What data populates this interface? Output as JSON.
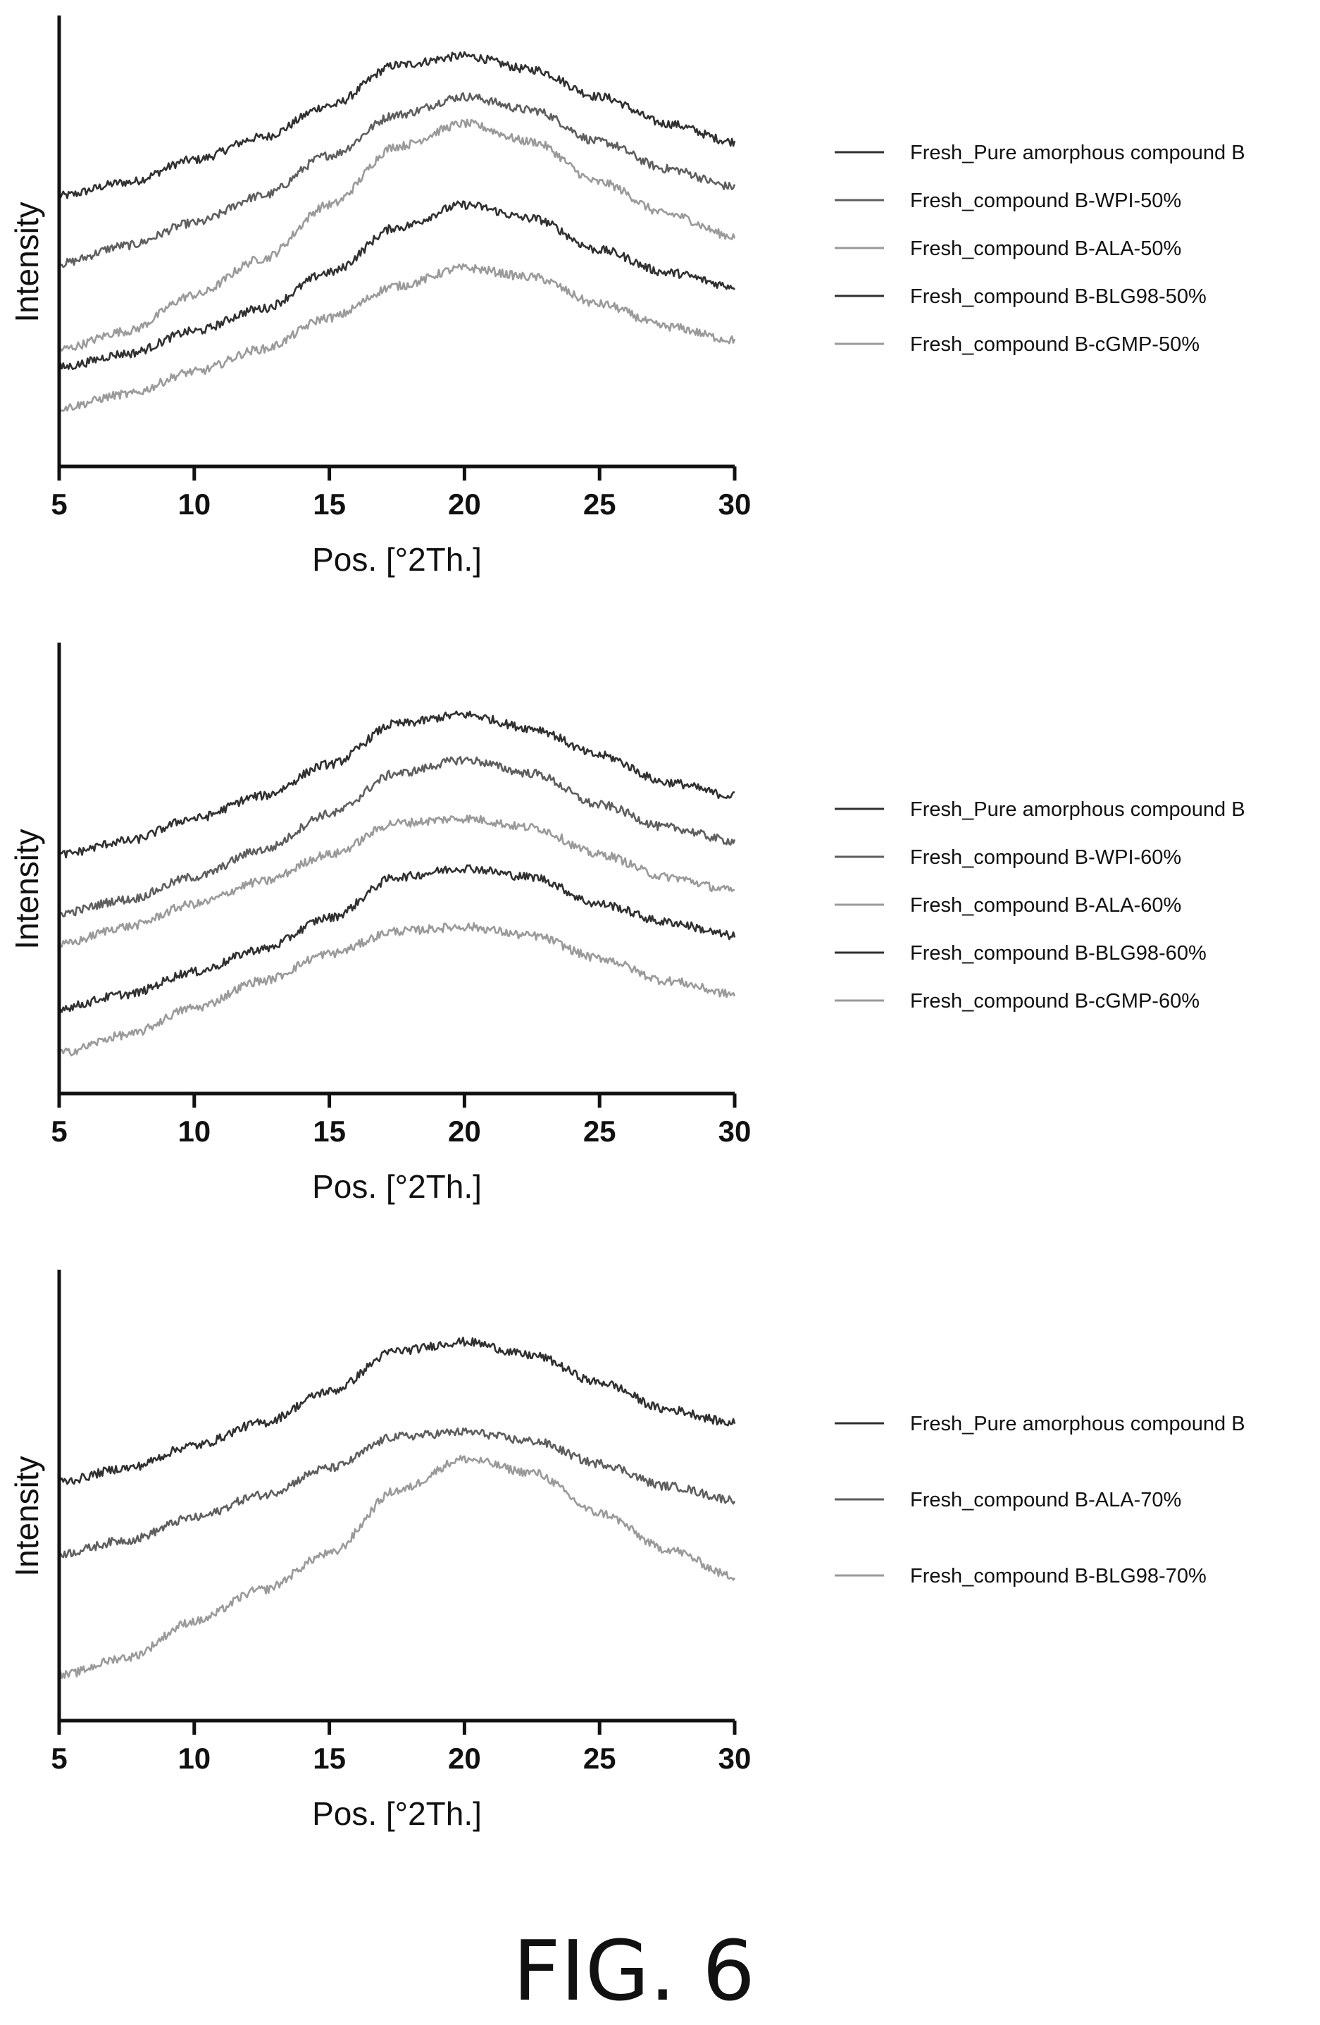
{
  "figure_label": "FIG. 6",
  "colors": {
    "dark": "#303030",
    "mid": "#5e5e5e",
    "light": "#9a9a9a"
  },
  "chart_data": [
    {
      "type": "line",
      "title": "",
      "xlabel": "Pos. [°2Th.]",
      "ylabel": "Intensity",
      "xlim": [
        5,
        30
      ],
      "ylim": [
        0,
        100
      ],
      "xticks": [
        5,
        10,
        15,
        20,
        25,
        30
      ],
      "y_ticks_shown": false,
      "grid": false,
      "legend_position": "right",
      "series": [
        {
          "name": "Fresh_Pure amorphous compound B",
          "color": "dark",
          "x": [
            5,
            7.5,
            10,
            12.5,
            15,
            17.5,
            20,
            22.5,
            25,
            27.5,
            30
          ],
          "y": [
            60,
            63,
            68,
            73,
            80,
            89,
            91,
            88,
            82,
            76,
            72
          ]
        },
        {
          "name": "Fresh_compound B-WPI-50%",
          "color": "mid",
          "x": [
            5,
            7.5,
            10,
            12.5,
            15,
            17.5,
            20,
            22.5,
            25,
            27.5,
            30
          ],
          "y": [
            45,
            49,
            54,
            60,
            69,
            78,
            82,
            79,
            72,
            66,
            62
          ]
        },
        {
          "name": "Fresh_compound B-ALA-50%",
          "color": "light",
          "x": [
            5,
            7.5,
            10,
            12.5,
            15,
            17.5,
            20,
            22.5,
            25,
            27.5,
            30
          ],
          "y": [
            26,
            30,
            38,
            46,
            58,
            71,
            76,
            72,
            63,
            56,
            51
          ]
        },
        {
          "name": "Fresh_compound B-BLG98-50%",
          "color": "dark",
          "x": [
            5,
            7.5,
            10,
            12.5,
            15,
            17.5,
            20,
            22.5,
            25,
            27.5,
            30
          ],
          "y": [
            22,
            25,
            30,
            35,
            43,
            53,
            58,
            55,
            48,
            43,
            40
          ]
        },
        {
          "name": "Fresh_compound B-cGMP-50%",
          "color": "light",
          "x": [
            5,
            7.5,
            10,
            12.5,
            15,
            17.5,
            20,
            22.5,
            25,
            27.5,
            30
          ],
          "y": [
            13,
            16,
            21,
            26,
            33,
            40,
            44,
            42,
            36,
            31,
            28
          ]
        }
      ]
    },
    {
      "type": "line",
      "title": "",
      "xlabel": "Pos. [°2Th.]",
      "ylabel": "Intensity",
      "xlim": [
        5,
        30
      ],
      "ylim": [
        0,
        100
      ],
      "xticks": [
        5,
        10,
        15,
        20,
        25,
        30
      ],
      "y_ticks_shown": false,
      "grid": false,
      "legend_position": "right",
      "series": [
        {
          "name": "Fresh_Pure amorphous compound B",
          "color": "dark",
          "x": [
            5,
            7.5,
            10,
            12.5,
            15,
            17.5,
            20,
            22.5,
            25,
            27.5,
            30
          ],
          "y": [
            53,
            56,
            61,
            66,
            73,
            82,
            84,
            81,
            75,
            69,
            66
          ]
        },
        {
          "name": "Fresh_compound B-WPI-60%",
          "color": "mid",
          "x": [
            5,
            7.5,
            10,
            12.5,
            15,
            17.5,
            20,
            22.5,
            25,
            27.5,
            30
          ],
          "y": [
            40,
            43,
            48,
            54,
            62,
            71,
            74,
            71,
            64,
            59,
            56
          ]
        },
        {
          "name": "Fresh_compound B-ALA-60%",
          "color": "light",
          "x": [
            5,
            7.5,
            10,
            12.5,
            15,
            17.5,
            20,
            22.5,
            25,
            27.5,
            30
          ],
          "y": [
            33,
            37,
            42,
            47,
            53,
            60,
            61,
            59,
            53,
            48,
            45
          ]
        },
        {
          "name": "Fresh_compound B-BLG98-60%",
          "color": "dark",
          "x": [
            5,
            7.5,
            10,
            12.5,
            15,
            17.5,
            20,
            22.5,
            25,
            27.5,
            30
          ],
          "y": [
            19,
            22,
            27,
            32,
            39,
            48,
            50,
            48,
            42,
            38,
            35
          ]
        },
        {
          "name": "Fresh_compound B-cGMP-60%",
          "color": "light",
          "x": [
            5,
            7.5,
            10,
            12.5,
            15,
            17.5,
            20,
            22.5,
            25,
            27.5,
            30
          ],
          "y": [
            9,
            13,
            19,
            25,
            31,
            36,
            37,
            35,
            30,
            25,
            22
          ]
        }
      ]
    },
    {
      "type": "line",
      "title": "",
      "xlabel": "Pos. [°2Th.]",
      "ylabel": "Intensity",
      "xlim": [
        5,
        30
      ],
      "ylim": [
        0,
        100
      ],
      "xticks": [
        5,
        10,
        15,
        20,
        25,
        30
      ],
      "y_ticks_shown": false,
      "grid": false,
      "legend_position": "right",
      "series": [
        {
          "name": "Fresh_Pure amorphous compound B",
          "color": "dark",
          "x": [
            5,
            7.5,
            10,
            12.5,
            15,
            17.5,
            20,
            22.5,
            25,
            27.5,
            30
          ],
          "y": [
            53,
            56,
            61,
            66,
            73,
            82,
            84,
            81,
            75,
            69,
            66
          ]
        },
        {
          "name": "Fresh_compound B-ALA-70%",
          "color": "mid",
          "x": [
            5,
            7.5,
            10,
            12.5,
            15,
            17.5,
            20,
            22.5,
            25,
            27.5,
            30
          ],
          "y": [
            37,
            40,
            45,
            50,
            56,
            63,
            64,
            62,
            57,
            52,
            49
          ]
        },
        {
          "name": "Fresh_compound B-BLG98-70%",
          "color": "light",
          "x": [
            5,
            7.5,
            10,
            12.5,
            15,
            17.5,
            20,
            22.5,
            25,
            27.5,
            30
          ],
          "y": [
            10,
            14,
            22,
            29,
            37,
            51,
            58,
            55,
            46,
            38,
            32
          ]
        }
      ]
    }
  ]
}
